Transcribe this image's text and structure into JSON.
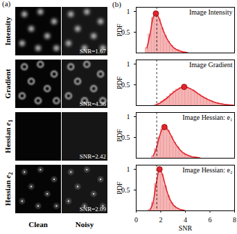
{
  "panel_a": {
    "label": "(a)",
    "columns": [
      "Clean",
      "Noisy"
    ],
    "rows": [
      {
        "label": "Intensity",
        "snr_label": "SNR=1.67"
      },
      {
        "label": "Gradient",
        "snr_label": "SNR=4.36"
      },
      {
        "label": "Hessian",
        "symbol": "e",
        "subscript": "1",
        "snr_label": "SNR=2.42"
      },
      {
        "label": "Hessian",
        "symbol": "e",
        "subscript": "2",
        "snr_label": "SNR=2.09"
      }
    ]
  },
  "panel_b": {
    "label": "(b)"
  },
  "chart_data": [
    {
      "type": "histogram",
      "title": "Image Intensity",
      "color": "#e0242c",
      "y_label": "PDF",
      "tick_labels": "y",
      "bins": [
        0,
        0.25,
        0.5,
        0.75,
        1,
        1.25,
        1.5,
        1.75,
        2,
        2.25,
        2.5,
        2.75,
        3,
        3.25,
        3.5,
        3.75,
        4,
        4.25,
        4.5,
        4.75,
        5,
        5.25,
        5.5,
        5.75,
        6,
        6.25,
        6.5,
        6.75,
        7,
        7.25,
        7.5,
        7.75,
        8
      ],
      "counts": [
        0,
        0,
        0,
        0.12,
        0.45,
        0.85,
        0.95,
        0.82,
        0.6,
        0.42,
        0.28,
        0.18,
        0.11,
        0.07,
        0.04,
        0.02,
        0.01,
        0,
        0,
        0,
        0,
        0,
        0,
        0,
        0,
        0,
        0,
        0,
        0,
        0,
        0,
        0
      ],
      "peak": {
        "x": 1.6,
        "y": 0.95
      },
      "reference_x": 1.67,
      "xlim": [
        0,
        8
      ],
      "xticks": [
        0,
        2,
        4,
        6,
        8
      ],
      "ylim": [
        0,
        1.1
      ],
      "yticks": [
        0.5,
        1
      ]
    },
    {
      "type": "histogram",
      "title": "Image Gradient",
      "color": "#e0242c",
      "y_label": "PDF",
      "tick_labels": "y",
      "bins": [
        0,
        0.25,
        0.5,
        0.75,
        1,
        1.25,
        1.5,
        1.75,
        2,
        2.25,
        2.5,
        2.75,
        3,
        3.25,
        3.5,
        3.75,
        4,
        4.25,
        4.5,
        4.75,
        5,
        5.25,
        5.5,
        5.75,
        6,
        6.25,
        6.5,
        6.75,
        7,
        7.25,
        7.5,
        7.75,
        8
      ],
      "counts": [
        0,
        0,
        0,
        0,
        0,
        0,
        0.02,
        0.05,
        0.1,
        0.15,
        0.21,
        0.28,
        0.34,
        0.39,
        0.43,
        0.45,
        0.44,
        0.41,
        0.37,
        0.32,
        0.27,
        0.22,
        0.18,
        0.14,
        0.11,
        0.08,
        0.06,
        0.045,
        0.03,
        0.02,
        0.015,
        0.01
      ],
      "peak": {
        "x": 3.9,
        "y": 0.45
      },
      "reference_x": 1.67,
      "xlim": [
        0,
        8
      ],
      "xticks": [
        0,
        2,
        4,
        6,
        8
      ],
      "ylim": [
        0,
        1.1
      ],
      "yticks": [
        0.5,
        1
      ]
    },
    {
      "type": "histogram",
      "title": "Image Hessian: e₁",
      "color": "#e0242c",
      "y_label": "PDF",
      "tick_labels": "y",
      "bins": [
        0,
        0.25,
        0.5,
        0.75,
        1,
        1.25,
        1.5,
        1.75,
        2,
        2.25,
        2.5,
        2.75,
        3,
        3.25,
        3.5,
        3.75,
        4,
        4.25,
        4.5,
        4.75,
        5,
        5.25,
        5.5,
        5.75,
        6,
        6.25,
        6.5,
        6.75,
        7,
        7.25,
        7.5,
        7.75,
        8
      ],
      "counts": [
        0,
        0,
        0,
        0,
        0,
        0.05,
        0.22,
        0.5,
        0.7,
        0.74,
        0.66,
        0.52,
        0.38,
        0.27,
        0.18,
        0.12,
        0.08,
        0.05,
        0.03,
        0.02,
        0.01,
        0,
        0,
        0,
        0,
        0,
        0,
        0,
        0,
        0,
        0,
        0
      ],
      "peak": {
        "x": 2.3,
        "y": 0.75
      },
      "reference_x": 1.67,
      "xlim": [
        0,
        8
      ],
      "xticks": [
        0,
        2,
        4,
        6,
        8
      ],
      "ylim": [
        0,
        1.1
      ],
      "yticks": [
        0.5,
        1
      ]
    },
    {
      "type": "histogram",
      "title": "Image Hessian: e₂",
      "color": "#e0242c",
      "y_label": "PDF",
      "x_label": "SNR",
      "tick_labels": true,
      "bins": [
        0,
        0.25,
        0.5,
        0.75,
        1,
        1.25,
        1.5,
        1.75,
        2,
        2.25,
        2.5,
        2.75,
        3,
        3.25,
        3.5,
        3.75,
        4,
        4.25,
        4.5,
        4.75,
        5,
        5.25,
        5.5,
        5.75,
        6,
        6.25,
        6.5,
        6.75,
        7,
        7.25,
        7.5,
        7.75,
        8
      ],
      "counts": [
        0,
        0,
        0,
        0,
        0.03,
        0.2,
        0.65,
        0.98,
        0.88,
        0.6,
        0.36,
        0.2,
        0.11,
        0.06,
        0.03,
        0.015,
        0,
        0,
        0,
        0,
        0,
        0,
        0,
        0,
        0,
        0,
        0,
        0,
        0,
        0,
        0,
        0
      ],
      "peak": {
        "x": 1.9,
        "y": 1.0
      },
      "reference_x": 1.67,
      "xlim": [
        0,
        8
      ],
      "xticks": [
        0,
        2,
        4,
        6,
        8
      ],
      "ylim": [
        0,
        1.1
      ],
      "yticks": [
        0.5,
        1
      ]
    }
  ]
}
